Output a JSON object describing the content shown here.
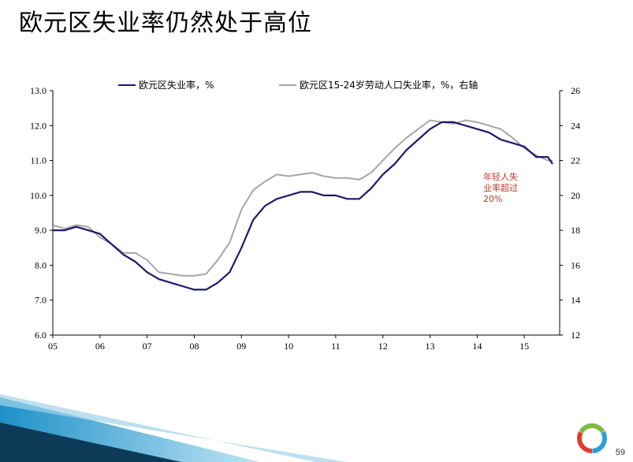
{
  "slide": {
    "title": "欧元区失业率仍然处于高位",
    "page_number": "59"
  },
  "colors": {
    "series_primary": "#1a1a6e",
    "series_secondary": "#a6a6a6",
    "annotation": "#c0392b",
    "decor_blue": "#2aa0d6"
  },
  "chart_data": {
    "type": "line",
    "title": "",
    "xlabel": "",
    "x_ticks": [
      "05",
      "06",
      "07",
      "08",
      "09",
      "10",
      "11",
      "12",
      "13",
      "14",
      "15"
    ],
    "x_range": [
      2005.0,
      2015.75
    ],
    "y_left": {
      "min": 6.0,
      "max": 13.0,
      "ticks": [
        "6.0",
        "7.0",
        "8.0",
        "9.0",
        "10.0",
        "11.0",
        "12.0",
        "13.0"
      ]
    },
    "y_right": {
      "min": 12,
      "max": 26,
      "ticks": [
        "12",
        "14",
        "16",
        "18",
        "20",
        "22",
        "24",
        "26"
      ]
    },
    "grid": false,
    "legend_position": "top",
    "annotation": [
      "年轻人失",
      "业率超过",
      "20%"
    ],
    "series": [
      {
        "name": "欧元区失业率，%",
        "axis": "left",
        "x": [
          2005.0,
          2005.25,
          2005.5,
          2005.75,
          2006.0,
          2006.25,
          2006.5,
          2006.75,
          2007.0,
          2007.25,
          2007.5,
          2007.75,
          2008.0,
          2008.25,
          2008.5,
          2008.75,
          2009.0,
          2009.25,
          2009.5,
          2009.75,
          2010.0,
          2010.25,
          2010.5,
          2010.75,
          2011.0,
          2011.25,
          2011.5,
          2011.75,
          2012.0,
          2012.25,
          2012.5,
          2012.75,
          2013.0,
          2013.25,
          2013.5,
          2013.75,
          2014.0,
          2014.25,
          2014.5,
          2014.75,
          2015.0,
          2015.25,
          2015.5,
          2015.6
        ],
        "y": [
          9.0,
          9.0,
          9.1,
          9.0,
          8.9,
          8.6,
          8.3,
          8.1,
          7.8,
          7.6,
          7.5,
          7.4,
          7.3,
          7.3,
          7.5,
          7.8,
          8.5,
          9.3,
          9.7,
          9.9,
          10.0,
          10.1,
          10.1,
          10.0,
          10.0,
          9.9,
          9.9,
          10.2,
          10.6,
          10.9,
          11.3,
          11.6,
          11.9,
          12.1,
          12.1,
          12.0,
          11.9,
          11.8,
          11.6,
          11.5,
          11.4,
          11.1,
          11.1,
          10.9
        ]
      },
      {
        "name": "欧元区15-24岁劳动人口失业率，%，右轴",
        "axis": "right",
        "x": [
          2005.0,
          2005.25,
          2005.5,
          2005.75,
          2006.0,
          2006.25,
          2006.5,
          2006.75,
          2007.0,
          2007.25,
          2007.5,
          2007.75,
          2008.0,
          2008.25,
          2008.5,
          2008.75,
          2009.0,
          2009.25,
          2009.5,
          2009.75,
          2010.0,
          2010.25,
          2010.5,
          2010.75,
          2011.0,
          2011.25,
          2011.5,
          2011.75,
          2012.0,
          2012.25,
          2012.5,
          2012.75,
          2013.0,
          2013.25,
          2013.5,
          2013.75,
          2014.0,
          2014.25,
          2014.5,
          2014.75,
          2015.0,
          2015.25,
          2015.5,
          2015.6
        ],
        "y": [
          18.3,
          18.1,
          18.3,
          18.2,
          17.6,
          17.2,
          16.7,
          16.7,
          16.3,
          15.6,
          15.5,
          15.4,
          15.4,
          15.5,
          16.3,
          17.3,
          19.2,
          20.3,
          20.8,
          21.2,
          21.1,
          21.2,
          21.3,
          21.1,
          21.0,
          21.0,
          20.9,
          21.3,
          22.0,
          22.7,
          23.3,
          23.8,
          24.3,
          24.2,
          24.1,
          24.3,
          24.2,
          24.0,
          23.8,
          23.3,
          22.7,
          22.3,
          22.0,
          22.0
        ]
      }
    ]
  }
}
